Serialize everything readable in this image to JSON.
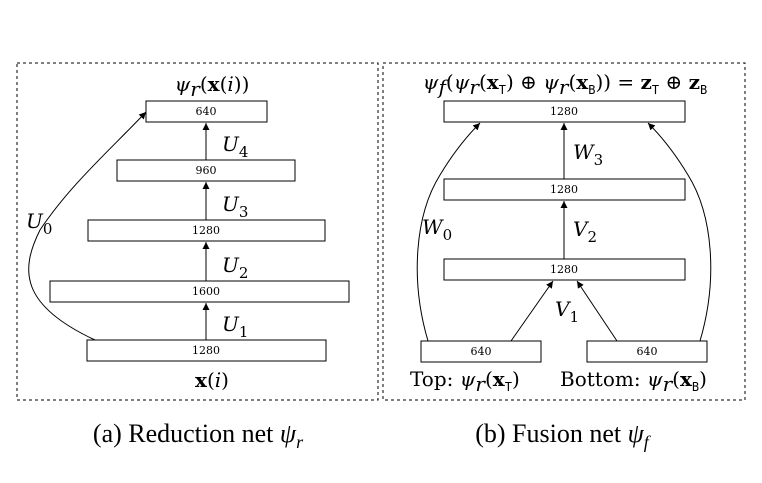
{
  "reduction_net": {
    "output_label": "ψr(x(i))",
    "input_label": "x(i)",
    "layers": [
      "640",
      "960",
      "1280",
      "1600",
      "1280"
    ],
    "edge_labels": [
      "U4",
      "U3",
      "U2",
      "U1",
      "U0"
    ],
    "caption": "(a) Reduction net ψr"
  },
  "fusion_net": {
    "output_label": "ψf(ψr(xT) ⊕ ψr(xB)) = zT ⊕ zB",
    "layers": [
      "1280",
      "1280",
      "1280"
    ],
    "inputs": [
      "640",
      "640"
    ],
    "input_labels": [
      "Top: ψr(xT)",
      "Bottom: ψr(xB)"
    ],
    "edge_labels": [
      "W3",
      "V2",
      "V1",
      "W0"
    ],
    "caption": "(b) Fusion net ψf"
  }
}
